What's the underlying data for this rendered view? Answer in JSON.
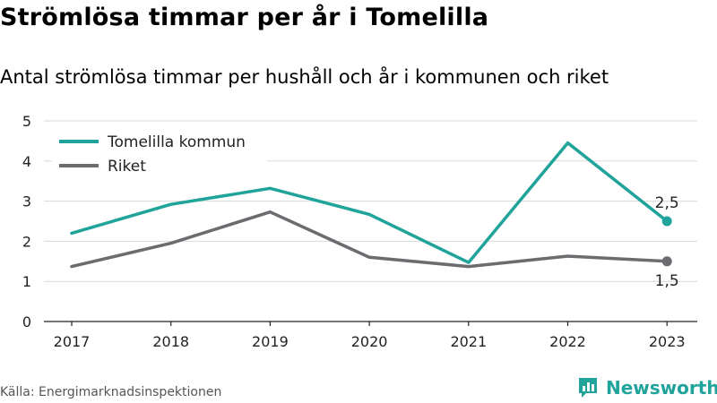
{
  "header": {
    "title": "Strömlösa timmar per år i Tomelilla",
    "subtitle": "Antal strömlösa timmar per hushåll och år i kommunen och riket"
  },
  "footer": {
    "source": "Källa: Energimarknadsinspektionen",
    "brand": "Newsworthy",
    "brand_icon": "bar-chart-speech-icon",
    "brand_color": "#1fa39a"
  },
  "chart_data": {
    "type": "line",
    "categories": [
      "2017",
      "2018",
      "2019",
      "2020",
      "2021",
      "2022",
      "2023"
    ],
    "series": [
      {
        "name": "Tomelilla kommun",
        "color": "#1fa39a",
        "values": [
          2.2,
          2.92,
          3.32,
          2.67,
          1.47,
          4.45,
          2.5
        ],
        "end_label": "2,5"
      },
      {
        "name": "Riket",
        "color": "#6b6b70",
        "values": [
          1.37,
          1.95,
          2.73,
          1.6,
          1.37,
          1.63,
          1.5
        ],
        "end_label": "1,5"
      }
    ],
    "ylim": [
      0,
      5
    ],
    "yticks": [
      "0",
      "1",
      "2",
      "3",
      "4",
      "5"
    ],
    "grid": true,
    "legend_position": "top-left"
  }
}
